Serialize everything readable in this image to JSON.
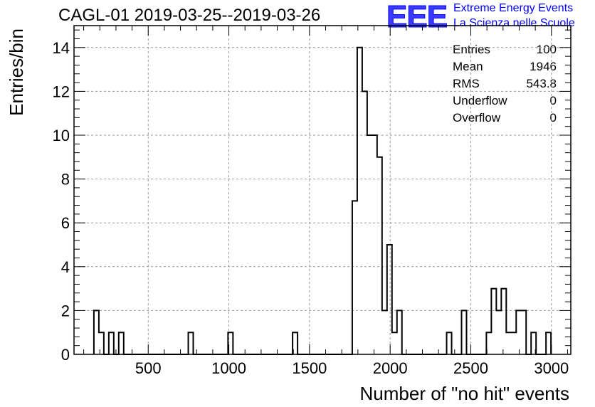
{
  "title": "CAGL-01 2019-03-25--2019-03-26",
  "logo": {
    "mark": "EEE",
    "line1": "Extreme Energy Events",
    "line2": "La Scienza nelle Scuole",
    "color": "#0000ff"
  },
  "stats": [
    {
      "label": "Entries",
      "value": "100"
    },
    {
      "label": "Mean",
      "value": "1946"
    },
    {
      "label": "RMS",
      "value": "543.8"
    },
    {
      "label": "Underflow",
      "value": "0"
    },
    {
      "label": "Overflow",
      "value": "0"
    }
  ],
  "chart_data": {
    "type": "histogram",
    "xlabel": "Number of \"no hit\" events",
    "ylabel": "Entries/bin",
    "xlim": [
      40,
      3120
    ],
    "ylim": [
      0,
      15
    ],
    "xticks": [
      500,
      1000,
      1500,
      2000,
      2500,
      3000
    ],
    "yticks": [
      0,
      2,
      4,
      6,
      8,
      10,
      12,
      14
    ],
    "grid": true,
    "bin_width": 30.8,
    "bins": [
      {
        "x0": 163.2,
        "value": 2
      },
      {
        "x0": 194.0,
        "value": 1
      },
      {
        "x0": 255.6,
        "value": 1
      },
      {
        "x0": 317.2,
        "value": 1
      },
      {
        "x0": 748.4,
        "value": 1
      },
      {
        "x0": 994.8,
        "value": 1
      },
      {
        "x0": 1395.2,
        "value": 1
      },
      {
        "x0": 1765.0,
        "value": 7
      },
      {
        "x0": 1795.8,
        "value": 14
      },
      {
        "x0": 1826.6,
        "value": 12
      },
      {
        "x0": 1857.4,
        "value": 10
      },
      {
        "x0": 1888.2,
        "value": 10
      },
      {
        "x0": 1919.0,
        "value": 9
      },
      {
        "x0": 1949.8,
        "value": 2
      },
      {
        "x0": 1980.6,
        "value": 5
      },
      {
        "x0": 2011.4,
        "value": 1
      },
      {
        "x0": 2042.2,
        "value": 2
      },
      {
        "x0": 2350.2,
        "value": 1
      },
      {
        "x0": 2442.6,
        "value": 2
      },
      {
        "x0": 2596.6,
        "value": 1
      },
      {
        "x0": 2627.4,
        "value": 3
      },
      {
        "x0": 2658.2,
        "value": 2
      },
      {
        "x0": 2689.0,
        "value": 3
      },
      {
        "x0": 2719.8,
        "value": 1
      },
      {
        "x0": 2750.6,
        "value": 1
      },
      {
        "x0": 2781.4,
        "value": 2
      },
      {
        "x0": 2812.2,
        "value": 2
      },
      {
        "x0": 2873.8,
        "value": 1
      },
      {
        "x0": 2966.2,
        "value": 1
      }
    ]
  }
}
